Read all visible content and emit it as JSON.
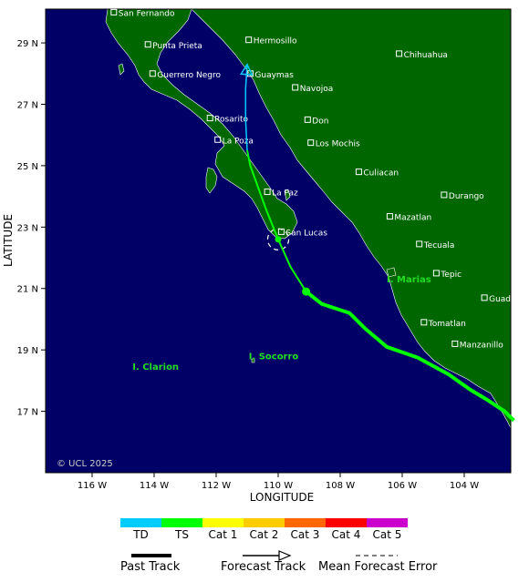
{
  "map": {
    "xlabel": "LONGITUDE",
    "ylabel": "LATITUDE",
    "copyright": "© UCL 2025",
    "lon_range": [
      -117.5,
      -102.5
    ],
    "lat_range": [
      15.0,
      30.1
    ],
    "lon_ticks": [
      {
        "value": -116,
        "label": "116 W"
      },
      {
        "value": -114,
        "label": "114 W"
      },
      {
        "value": -112,
        "label": "112 W"
      },
      {
        "value": -110,
        "label": "110 W"
      },
      {
        "value": -108,
        "label": "108 W"
      },
      {
        "value": -106,
        "label": "106 W"
      },
      {
        "value": -104,
        "label": "104 W"
      }
    ],
    "lat_ticks": [
      {
        "value": 29,
        "label": "29 N"
      },
      {
        "value": 27,
        "label": "27 N"
      },
      {
        "value": 25,
        "label": "25 N"
      },
      {
        "value": 23,
        "label": "23 N"
      },
      {
        "value": 21,
        "label": "21 N"
      },
      {
        "value": 19,
        "label": "19 N"
      },
      {
        "value": 17,
        "label": "17 N"
      }
    ],
    "colors": {
      "ocean": "#000066",
      "land": "#006600",
      "island_label": "#22dd22",
      "city_text": "#ffffff"
    }
  },
  "cities": [
    {
      "name": "San Fernando",
      "lon": -115.3,
      "lat": 30.0
    },
    {
      "name": "Hermosillo",
      "lon": -110.95,
      "lat": 29.1
    },
    {
      "name": "Punta Prieta",
      "lon": -114.2,
      "lat": 28.95
    },
    {
      "name": "Chihuahua",
      "lon": -106.1,
      "lat": 28.65
    },
    {
      "name": "Guerrero Negro",
      "lon": -114.05,
      "lat": 28.0
    },
    {
      "name": "Guaymas",
      "lon": -110.9,
      "lat": 28.0
    },
    {
      "name": "Navojoa",
      "lon": -109.45,
      "lat": 27.55
    },
    {
      "name": "Don",
      "lon": -109.05,
      "lat": 26.5
    },
    {
      "name": "Rosarito",
      "lon": -112.2,
      "lat": 26.55
    },
    {
      "name": "La Poza",
      "lon": -111.95,
      "lat": 25.85
    },
    {
      "name": "Los Mochis",
      "lon": -108.95,
      "lat": 25.75
    },
    {
      "name": "Culiacan",
      "lon": -107.4,
      "lat": 24.8
    },
    {
      "name": "La Paz",
      "lon": -110.35,
      "lat": 24.15
    },
    {
      "name": "Durango",
      "lon": -104.65,
      "lat": 24.05
    },
    {
      "name": "San Lucas",
      "lon": -109.9,
      "lat": 22.85
    },
    {
      "name": "Mazatlan",
      "lon": -106.4,
      "lat": 23.35
    },
    {
      "name": "Tecuala",
      "lon": -105.45,
      "lat": 22.45
    },
    {
      "name": "Tepic",
      "lon": -104.9,
      "lat": 21.5
    },
    {
      "name": "Guadalajara",
      "lon": -103.35,
      "lat": 20.7
    },
    {
      "name": "Tomatlan",
      "lon": -105.3,
      "lat": 19.9
    },
    {
      "name": "Manzanillo",
      "lon": -104.3,
      "lat": 19.2
    }
  ],
  "islands": [
    {
      "name": "I. Marias",
      "lon": -106.5,
      "lat": 21.2
    },
    {
      "name": "I. Clarion",
      "lon": -114.7,
      "lat": 18.35
    },
    {
      "name": "I. Socorro",
      "lon": -110.95,
      "lat": 18.7
    }
  ],
  "tracks": {
    "past": {
      "category": "TS",
      "points": [
        [
          -102.4,
          16.7
        ],
        [
          -102.7,
          17.0
        ],
        [
          -103.3,
          17.4
        ],
        [
          -103.8,
          17.7
        ],
        [
          -104.5,
          18.2
        ],
        [
          -105.5,
          18.75
        ],
        [
          -106.5,
          19.1
        ],
        [
          -107.2,
          19.7
        ],
        [
          -107.7,
          20.2
        ],
        [
          -108.6,
          20.5
        ],
        [
          -109.1,
          20.9
        ]
      ]
    },
    "forecast_ts": {
      "category": "TS",
      "points": [
        [
          -109.1,
          20.9
        ],
        [
          -109.6,
          21.7
        ],
        [
          -110.0,
          22.6
        ],
        [
          -110.4,
          23.6
        ],
        [
          -110.9,
          25.0
        ],
        [
          -111.0,
          25.5
        ]
      ]
    },
    "forecast_td": {
      "category": "TD",
      "points": [
        [
          -111.0,
          25.5
        ],
        [
          -111.05,
          26.5
        ],
        [
          -111.05,
          27.5
        ],
        [
          -111.0,
          28.3
        ]
      ]
    },
    "current_position": {
      "lon": -110.0,
      "lat": 22.6
    },
    "past_marker": {
      "lon": -109.1,
      "lat": 20.9
    },
    "error_circle": {
      "lon": -110.0,
      "lat": 22.6,
      "radius_deg": 0.34
    }
  },
  "legend": {
    "categories": [
      {
        "label": "TD",
        "color": "#00ccff"
      },
      {
        "label": "TS",
        "color": "#00ff00"
      },
      {
        "label": "Cat 1",
        "color": "#ffff00"
      },
      {
        "label": "Cat 2",
        "color": "#ffcc00"
      },
      {
        "label": "Cat 3",
        "color": "#ff6600"
      },
      {
        "label": "Cat 4",
        "color": "#ff0000"
      },
      {
        "label": "Cat 5",
        "color": "#cc00cc"
      }
    ],
    "past_track": "Past Track",
    "forecast_track": "Forecast Track",
    "mean_error": "Mean Forecast Error"
  }
}
